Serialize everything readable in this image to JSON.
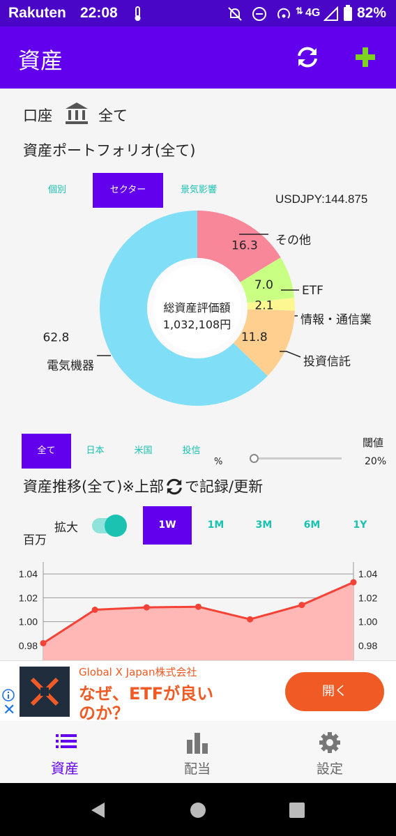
{
  "status": {
    "carrier": "Rakuten",
    "time": "22:08",
    "network": "4G",
    "battery": "82%"
  },
  "appbar": {
    "title": "資産"
  },
  "account": {
    "label": "口座",
    "value": "全て"
  },
  "portfolio": {
    "title": "資産ポートフォリオ(全て)",
    "tabs": [
      "個別",
      "セクター",
      "景気影響"
    ],
    "selected_tab": "セクター",
    "fx": "USDJPY:144.875",
    "center_title": "総資産評価額",
    "center_value": "1,032,108円"
  },
  "chart_data": [
    {
      "type": "pie",
      "categories": [
        "その他",
        "ETF",
        "情報・通信業",
        "投資信託",
        "電気機器"
      ],
      "values": [
        16.3,
        7.0,
        2.1,
        11.8,
        62.8
      ],
      "value_labels": [
        "16.3",
        "7.0",
        "2.1",
        "11.8",
        "62.8"
      ],
      "colors": [
        "#f9879a",
        "#c9ff83",
        "#fdf792",
        "#ffcf90",
        "#80def7"
      ]
    },
    {
      "type": "area",
      "x": [
        "1",
        "2",
        "3",
        "4",
        "5",
        "6",
        "7"
      ],
      "values": [
        0.982,
        1.01,
        1.012,
        1.0125,
        1.002,
        1.014,
        1.033
      ],
      "yticks": [
        "1.04",
        "1.02",
        "1.00",
        "0.98"
      ],
      "ylim": [
        0.97,
        1.05
      ],
      "color": "#f44336",
      "fill": "#ffb8b5",
      "grid": true
    }
  ],
  "filter": {
    "tabs": [
      "全て",
      "日本",
      "米国",
      "投信"
    ],
    "selected": "全て",
    "threshold_label": "閾値",
    "unit": "%",
    "threshold_value": 0.0,
    "threshold_text": "20%"
  },
  "trend": {
    "title_pre": "資産推移(全て)",
    "title_mid": "※上部",
    "title_post": "で記録/更新",
    "unit": "百万",
    "zoom_label": "拡大",
    "zoom_on": true,
    "ranges": [
      "1W",
      "1M",
      "3M",
      "6M",
      "1Y"
    ],
    "selected_range": "1W"
  },
  "ad": {
    "company": "Global X Japan株式会社",
    "headline_1": "なぜ、ETFが良い",
    "headline_2": "のか？",
    "cta": "開く"
  },
  "nav": [
    {
      "label": "資産",
      "icon": "list-icon",
      "active": true
    },
    {
      "label": "配当",
      "icon": "bar-chart-icon",
      "active": false
    },
    {
      "label": "設定",
      "icon": "gear-icon",
      "active": false
    }
  ],
  "colors": {
    "primary": "#6200ee",
    "status": "#4a06c6",
    "teal": "#1bc2b1",
    "accent_green": "#7ed321",
    "ad_orange": "#f05a24"
  }
}
